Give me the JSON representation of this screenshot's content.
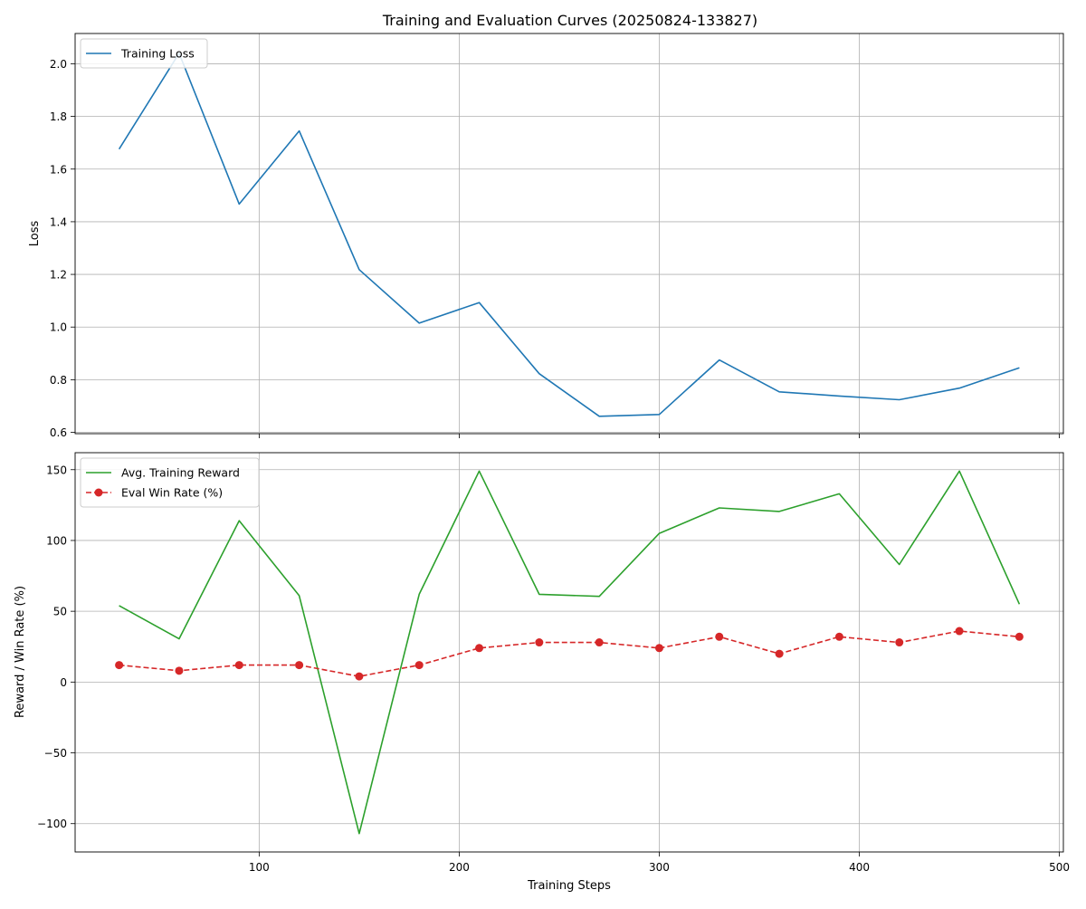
{
  "title": "Training and Evaluation Curves (20250824-133827)",
  "colors": {
    "loss": "#1f77b4",
    "reward": "#2ca02c",
    "winrate": "#d62728",
    "grid": "#b0b0b0"
  },
  "chart_data": [
    {
      "type": "line",
      "title": "Training and Evaluation Curves (20250824-133827)",
      "xlabel": "",
      "ylabel": "Loss",
      "xlim": [
        8,
        502
      ],
      "ylim": [
        0.595,
        2.115
      ],
      "xticks": [
        100,
        200,
        300,
        400,
        500
      ],
      "yticks": [
        0.6,
        0.8,
        1.0,
        1.2,
        1.4,
        1.6,
        1.8,
        2.0
      ],
      "ytick_labels": [
        "0.6",
        "0.8",
        "1.0",
        "1.2",
        "1.4",
        "1.6",
        "1.8",
        "2.0"
      ],
      "grid": true,
      "legend": "top-left",
      "x": [
        30,
        60,
        90,
        120,
        150,
        180,
        210,
        240,
        270,
        300,
        330,
        360,
        390,
        420,
        450,
        480
      ],
      "series": [
        {
          "name": "Training Loss",
          "style": "solid",
          "values": [
            1.676,
            2.04,
            1.467,
            1.745,
            1.218,
            1.015,
            1.093,
            0.823,
            0.661,
            0.668,
            0.875,
            0.754,
            0.738,
            0.724,
            0.768,
            0.845
          ]
        }
      ]
    },
    {
      "type": "line",
      "xlabel": "Training Steps",
      "ylabel": "Reward / Win Rate (%)",
      "xlim": [
        8,
        502
      ],
      "ylim": [
        -120,
        162
      ],
      "xticks": [
        100,
        200,
        300,
        400,
        500
      ],
      "xtick_labels": [
        "100",
        "200",
        "300",
        "400",
        "500"
      ],
      "yticks": [
        -100,
        -50,
        0,
        50,
        100,
        150
      ],
      "ytick_labels": [
        "−100",
        "−50",
        "0",
        "50",
        "100",
        "150"
      ],
      "grid": true,
      "legend": "top-left",
      "x": [
        30,
        60,
        90,
        120,
        150,
        180,
        210,
        240,
        270,
        300,
        330,
        360,
        390,
        420,
        450,
        480
      ],
      "series": [
        {
          "name": "Avg. Training Reward",
          "style": "solid",
          "values": [
            54,
            30.5,
            114,
            61,
            -107,
            62,
            149,
            62,
            60.5,
            105,
            123,
            120.5,
            133,
            83,
            149,
            55
          ]
        },
        {
          "name": "Eval Win Rate (%)",
          "style": "dashed-markers",
          "values": [
            12,
            8,
            12,
            12,
            4,
            12,
            24,
            28,
            28,
            24,
            32,
            20,
            32,
            28,
            36,
            32
          ]
        }
      ]
    }
  ]
}
